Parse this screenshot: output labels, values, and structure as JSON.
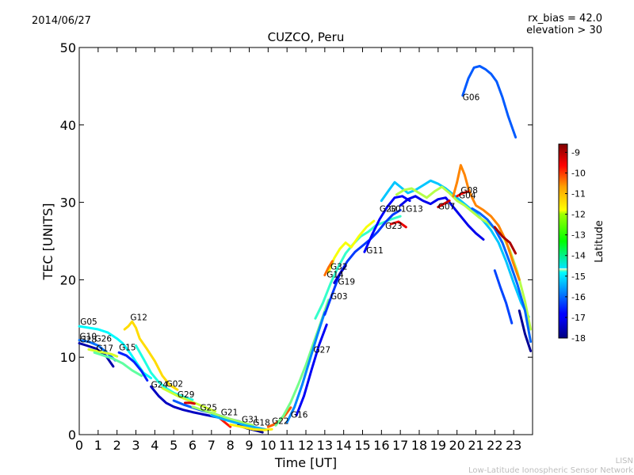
{
  "header": {
    "date": "2014/06/27",
    "bias_text": "rx_bias = 42.0",
    "elevation_text": "elevation > 30"
  },
  "footer": {
    "line1": "LISN",
    "line2": "Low-Latitude Ionospheric Sensor Network"
  },
  "colorbar": {
    "label": "Latitude",
    "min": -18,
    "max": -8.6,
    "ticks": [
      "-9",
      "-10",
      "-11",
      "-12",
      "-13",
      "-14",
      "-15",
      "-16",
      "-17",
      "-18"
    ]
  },
  "chart_data": {
    "type": "line",
    "title": "CUZCO, Peru",
    "xlabel": "Time [UT]",
    "ylabel": "TEC [UNITS]",
    "xlim": [
      0,
      24
    ],
    "ylim": [
      0,
      50
    ],
    "xticks": [
      "0",
      "1",
      "2",
      "3",
      "4",
      "5",
      "6",
      "7",
      "8",
      "9",
      "10",
      "11",
      "12",
      "13",
      "14",
      "15",
      "16",
      "17",
      "18",
      "19",
      "20",
      "21",
      "22",
      "23"
    ],
    "yticks": [
      "0",
      "10",
      "20",
      "30",
      "40",
      "50"
    ],
    "grid": false,
    "prn_labels": [
      {
        "text": "G05",
        "x": 0.05,
        "y": 14.2
      },
      {
        "text": "G10",
        "x": 0.02,
        "y": 12.3
      },
      {
        "text": "G28",
        "x": 0.02,
        "y": 11.9
      },
      {
        "text": "G26",
        "x": 0.82,
        "y": 12.0
      },
      {
        "text": "G17",
        "x": 0.9,
        "y": 10.8
      },
      {
        "text": "G15",
        "x": 2.1,
        "y": 10.9
      },
      {
        "text": "G12",
        "x": 2.7,
        "y": 14.8
      },
      {
        "text": "G24",
        "x": 3.8,
        "y": 6.1
      },
      {
        "text": "G02",
        "x": 4.6,
        "y": 6.2
      },
      {
        "text": "G29",
        "x": 5.2,
        "y": 4.8
      },
      {
        "text": "G25",
        "x": 6.4,
        "y": 3.1
      },
      {
        "text": "G21",
        "x": 7.5,
        "y": 2.5
      },
      {
        "text": "G31",
        "x": 8.6,
        "y": 1.6
      },
      {
        "text": "G18",
        "x": 9.2,
        "y": 1.2
      },
      {
        "text": "G22",
        "x": 10.2,
        "y": 1.4
      },
      {
        "text": "G16",
        "x": 11.2,
        "y": 2.2
      },
      {
        "text": "G27",
        "x": 12.4,
        "y": 10.6
      },
      {
        "text": "G03",
        "x": 13.3,
        "y": 17.5
      },
      {
        "text": "G19",
        "x": 13.7,
        "y": 19.4
      },
      {
        "text": "G14",
        "x": 13.1,
        "y": 20.3
      },
      {
        "text": "G32",
        "x": 13.3,
        "y": 21.3
      },
      {
        "text": "G11",
        "x": 15.2,
        "y": 23.4
      },
      {
        "text": "G23",
        "x": 16.2,
        "y": 26.6
      },
      {
        "text": "G20",
        "x": 15.9,
        "y": 28.8
      },
      {
        "text": "G01",
        "x": 16.4,
        "y": 28.8
      },
      {
        "text": "G13",
        "x": 17.3,
        "y": 28.8
      },
      {
        "text": "G07",
        "x": 19.0,
        "y": 29.1
      },
      {
        "text": "G04",
        "x": 20.1,
        "y": 30.5
      },
      {
        "text": "G08",
        "x": 20.2,
        "y": 31.2
      },
      {
        "text": "G06",
        "x": 20.3,
        "y": 43.2
      }
    ],
    "series": [
      {
        "lat": -14.5,
        "x": [
          0,
          0.5,
          1,
          1.5,
          2,
          2.3,
          2.7,
          3.0,
          3.4,
          3.8
        ],
        "y": [
          14.0,
          13.8,
          13.6,
          13.2,
          12.4,
          11.8,
          10.5,
          9.4,
          8.0,
          7.3
        ]
      },
      {
        "lat": -15.8,
        "x": [
          0,
          0.5,
          1,
          1.5,
          1.9
        ],
        "y": [
          12.2,
          12.0,
          11.5,
          10.5,
          9.6
        ]
      },
      {
        "lat": -17.6,
        "x": [
          0,
          0.4,
          0.9,
          1.4,
          1.8
        ],
        "y": [
          11.8,
          11.5,
          11.1,
          10.2,
          8.8
        ]
      },
      {
        "lat": -12.5,
        "x": [
          0.5,
          0.9,
          1.3,
          1.7,
          2.0
        ],
        "y": [
          11.0,
          10.8,
          10.6,
          10.4,
          10.1
        ]
      },
      {
        "lat": -13.6,
        "x": [
          0.8,
          1.3,
          1.8,
          2.3,
          2.8,
          3.3
        ],
        "y": [
          10.6,
          10.2,
          9.8,
          9.2,
          8.3,
          7.6
        ]
      },
      {
        "lat": -16.5,
        "x": [
          2.1,
          2.5,
          2.9,
          3.3,
          3.6
        ],
        "y": [
          10.6,
          10.2,
          9.4,
          8.2,
          7.0
        ]
      },
      {
        "lat": -11.8,
        "x": [
          2.4,
          2.6,
          2.8,
          3.0,
          3.2,
          3.6,
          4.0,
          4.4,
          4.8,
          5.2
        ],
        "y": [
          13.6,
          14.0,
          14.6,
          13.8,
          12.4,
          11.0,
          9.5,
          7.6,
          6.4,
          5.8
        ]
      },
      {
        "lat": -14.2,
        "x": [
          3.0,
          3.4,
          3.8,
          4.2,
          4.6,
          5.0,
          5.5,
          6.0
        ],
        "y": [
          11.5,
          9.8,
          8.0,
          6.8,
          6.0,
          5.4,
          4.9,
          4.5
        ]
      },
      {
        "lat": -17.4,
        "x": [
          3.8,
          4.2,
          4.6,
          5.0,
          5.5,
          6.0,
          6.6,
          7.2,
          7.8
        ],
        "y": [
          6.2,
          5.0,
          4.1,
          3.6,
          3.2,
          2.9,
          2.6,
          2.3,
          2.0
        ]
      },
      {
        "lat": -12.6,
        "x": [
          4.4,
          4.8,
          5.2,
          5.6,
          6.0,
          6.6,
          7.2
        ],
        "y": [
          6.0,
          5.5,
          5.0,
          4.6,
          4.2,
          3.6,
          3.0
        ]
      },
      {
        "lat": -9.4,
        "x": [
          5.6,
          5.9,
          6.1
        ],
        "y": [
          4.1,
          4.1,
          4.0
        ]
      },
      {
        "lat": -16.0,
        "x": [
          5.0,
          5.5,
          6.0,
          6.5,
          7.0,
          7.5,
          8.0,
          8.5
        ],
        "y": [
          4.4,
          3.9,
          3.5,
          3.1,
          2.8,
          2.4,
          2.0,
          1.7
        ]
      },
      {
        "lat": -13.0,
        "x": [
          6.0,
          6.5,
          7.0,
          7.5,
          8.0,
          8.6,
          9.2
        ],
        "y": [
          3.6,
          3.2,
          2.8,
          2.4,
          2.0,
          1.6,
          1.2
        ]
      },
      {
        "lat": -10.0,
        "x": [
          7.4,
          7.7,
          8.0
        ],
        "y": [
          2.2,
          1.6,
          1.0
        ]
      },
      {
        "lat": -15.2,
        "x": [
          7.0,
          7.6,
          8.2,
          8.8,
          9.4,
          10.0
        ],
        "y": [
          2.5,
          2.0,
          1.6,
          1.2,
          0.9,
          0.6
        ]
      },
      {
        "lat": -17.9,
        "x": [
          8.4,
          8.9,
          9.4,
          9.7
        ],
        "y": [
          1.2,
          0.8,
          0.5,
          0.3
        ]
      },
      {
        "lat": -12.0,
        "x": [
          8.0,
          8.6,
          9.2,
          9.8,
          10.2
        ],
        "y": [
          1.3,
          1.0,
          0.7,
          0.6,
          0.7
        ]
      },
      {
        "lat": -10.6,
        "x": [
          10.0,
          10.3,
          10.6,
          10.9,
          11.2
        ],
        "y": [
          1.0,
          1.3,
          1.8,
          2.5,
          3.5
        ]
      },
      {
        "lat": -13.4,
        "x": [
          10.4,
          10.8,
          11.2,
          11.6,
          12.0,
          12.4,
          12.8,
          13.2
        ],
        "y": [
          1.2,
          2.4,
          4.2,
          6.5,
          9.0,
          11.8,
          14.6,
          17.4
        ]
      },
      {
        "lat": -15.6,
        "x": [
          11.0,
          11.4,
          11.8,
          12.2,
          12.6,
          13.0
        ],
        "y": [
          1.6,
          3.6,
          6.4,
          9.6,
          12.8,
          15.8
        ]
      },
      {
        "lat": -16.9,
        "x": [
          11.5,
          11.9,
          12.3,
          12.7,
          13.1
        ],
        "y": [
          2.5,
          5.0,
          8.4,
          11.6,
          14.2
        ]
      },
      {
        "lat": -14.0,
        "x": [
          12.5,
          12.9,
          13.3,
          13.7,
          14.1,
          14.5,
          14.9,
          15.3,
          15.7,
          16.1,
          16.5,
          17.0
        ],
        "y": [
          15.0,
          17.0,
          19.5,
          21.6,
          23.4,
          24.6,
          25.6,
          26.2,
          27.0,
          27.4,
          27.8,
          28.2
        ]
      },
      {
        "lat": -16.3,
        "x": [
          13.0,
          13.4,
          13.8,
          14.2,
          14.6,
          15.0,
          15.4,
          15.8,
          16.2,
          16.6,
          17.0
        ],
        "y": [
          15.5,
          18.2,
          20.8,
          22.4,
          23.6,
          24.4,
          25.2,
          26.2,
          27.4,
          28.4,
          29.0
        ]
      },
      {
        "lat": -12.2,
        "x": [
          13.2,
          13.5,
          13.8,
          14.1,
          14.4,
          14.8,
          15.2,
          15.6
        ],
        "y": [
          21.0,
          22.8,
          24.0,
          24.8,
          24.2,
          25.6,
          26.8,
          27.6
        ]
      },
      {
        "lat": -10.8,
        "x": [
          13.0,
          13.2,
          13.4
        ],
        "y": [
          20.6,
          21.6,
          22.4
        ]
      },
      {
        "lat": -17.2,
        "x": [
          13.5,
          13.8,
          14.1
        ],
        "y": [
          19.6,
          20.8,
          21.8
        ]
      },
      {
        "lat": -16.8,
        "x": [
          15.1,
          15.5,
          15.9,
          16.3,
          16.7,
          17.1,
          17.5
        ],
        "y": [
          23.6,
          25.8,
          27.8,
          29.4,
          30.6,
          30.8,
          30.2
        ]
      },
      {
        "lat": -9.6,
        "x": [
          16.5,
          16.9,
          17.3
        ],
        "y": [
          27.2,
          27.5,
          26.8
        ]
      },
      {
        "lat": -15.0,
        "x": [
          16.0,
          16.4,
          16.7,
          17.0,
          17.4,
          17.8,
          18.2,
          18.6,
          19.0,
          19.4,
          19.8,
          20.2,
          20.6,
          21.0,
          21.4,
          21.8,
          22.2,
          22.6,
          23.0,
          23.4,
          23.8
        ],
        "y": [
          30.2,
          31.6,
          32.6,
          32.0,
          31.2,
          31.6,
          32.2,
          32.8,
          32.4,
          31.8,
          31.0,
          30.2,
          29.4,
          28.6,
          27.6,
          26.4,
          24.8,
          22.4,
          19.6,
          17.0,
          15.2
        ]
      },
      {
        "lat": -12.8,
        "x": [
          16.8,
          17.2,
          17.6,
          18.0,
          18.4,
          18.8,
          19.2,
          19.6,
          20.0,
          20.4,
          20.8,
          21.2,
          21.6,
          22.0,
          22.4,
          22.8,
          23.2,
          23.6,
          23.9
        ],
        "y": [
          31.0,
          31.6,
          31.8,
          31.2,
          30.6,
          31.4,
          32.0,
          31.2,
          30.2,
          29.6,
          28.8,
          28.0,
          27.4,
          26.6,
          25.8,
          23.8,
          21.0,
          17.2,
          13.6
        ]
      },
      {
        "lat": -17.0,
        "x": [
          17.0,
          17.4,
          17.8,
          18.2,
          18.6,
          19.0,
          19.4,
          19.8,
          20.2,
          20.6,
          21.0,
          21.4
        ],
        "y": [
          29.6,
          30.4,
          30.8,
          30.2,
          29.8,
          30.4,
          30.6,
          29.4,
          28.2,
          27.0,
          26.0,
          25.2
        ]
      },
      {
        "lat": -11.0,
        "x": [
          19.8,
          20.0,
          20.2,
          20.4,
          20.6,
          20.8,
          21.0,
          21.4,
          21.8,
          22.2,
          22.6,
          23.0,
          23.3
        ],
        "y": [
          30.8,
          32.6,
          34.8,
          33.6,
          31.8,
          30.6,
          29.6,
          29.0,
          28.2,
          27.0,
          25.0,
          22.0,
          20.0
        ]
      },
      {
        "lat": -9.3,
        "x": [
          19.0,
          19.3,
          19.6
        ],
        "y": [
          29.4,
          29.8,
          30.2
        ]
      },
      {
        "lat": -9.8,
        "x": [
          20.0,
          20.3,
          20.6
        ],
        "y": [
          30.8,
          31.2,
          31.4
        ]
      },
      {
        "lat": -15.9,
        "x": [
          20.8,
          21.2,
          21.6,
          22.0,
          22.4,
          22.8,
          23.2,
          23.6,
          23.9
        ],
        "y": [
          29.2,
          28.6,
          27.8,
          26.6,
          24.8,
          22.2,
          19.4,
          16.0,
          12.0
        ]
      },
      {
        "lat": -9.0,
        "x": [
          22.0,
          22.4,
          22.8,
          23.1
        ],
        "y": [
          26.8,
          25.6,
          24.8,
          23.4
        ]
      },
      {
        "lat": -16.2,
        "x": [
          22.0,
          22.3,
          22.6,
          22.9
        ],
        "y": [
          21.2,
          19.0,
          17.0,
          14.4
        ]
      },
      {
        "lat": -17.8,
        "x": [
          23.3,
          23.6,
          23.9
        ],
        "y": [
          16.0,
          13.0,
          10.8
        ]
      },
      {
        "lat": -16.0,
        "x": [
          20.3,
          20.6,
          20.9,
          21.2,
          21.5,
          21.8,
          22.1,
          22.4,
          22.7,
          22.9,
          23.1
        ],
        "y": [
          43.8,
          46.0,
          47.4,
          47.6,
          47.2,
          46.6,
          45.6,
          43.6,
          41.2,
          39.8,
          38.4
        ]
      }
    ]
  }
}
